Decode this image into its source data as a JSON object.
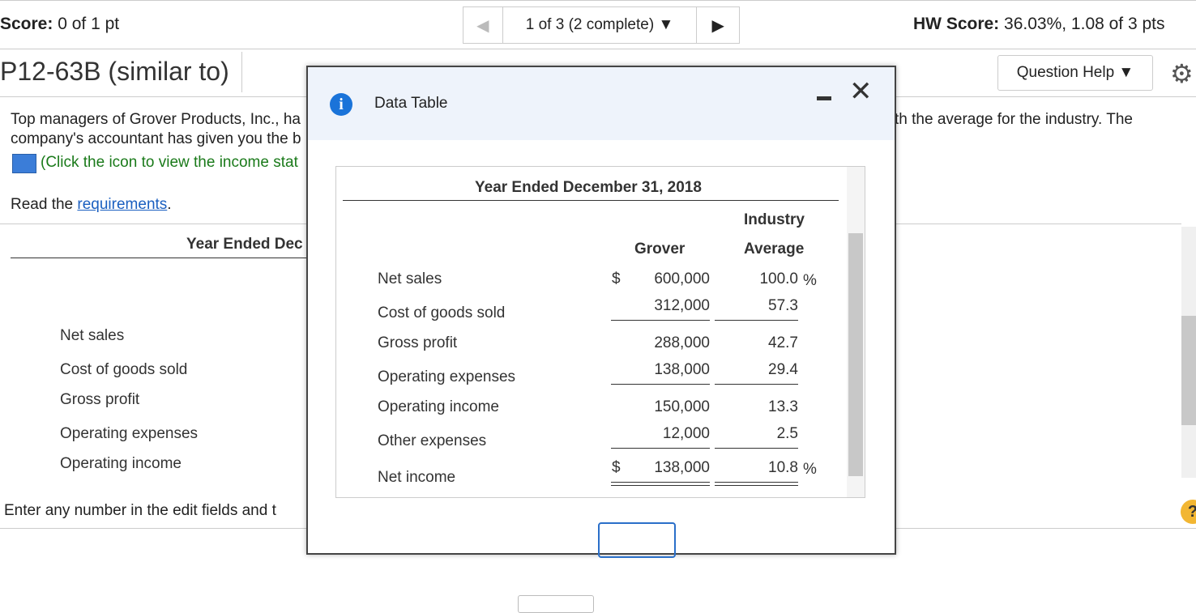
{
  "header": {
    "score_label": "Score:",
    "score_value": "0 of 1 pt",
    "nav": "1 of 3 (2 complete)",
    "hw_label": "HW Score:",
    "hw_value": "36.03%, 1.08 of 3 pts"
  },
  "problem": {
    "title": "P12-63B (similar to)",
    "question_help": "Question Help",
    "text_line1": "Top managers of Grover Products, Inc., ha",
    "text_line1_right": "th the average for the industry. The",
    "text_line2": "company's accountant has given you the b",
    "text_line3": "(Click the icon to view the income stat",
    "read_prefix": "Read the ",
    "read_link": "requirements",
    "read_suffix": ".",
    "table_heading": "Year Ended Dec",
    "rows": [
      "Net sales",
      "Cost of goods sold",
      "Gross profit",
      "Operating expenses",
      "Operating income"
    ],
    "footer": "Enter any number in the edit fields and t"
  },
  "dialog": {
    "title": "Data Table",
    "heading": "Year Ended December 31, 2018",
    "col_grover": "Grover",
    "col_industry_1": "Industry",
    "col_industry_2": "Average",
    "rows": [
      {
        "label": "Net sales",
        "currency": "$",
        "grover": "600,000",
        "industry": "100.0",
        "unit": "%"
      },
      {
        "label": "Cost of goods sold",
        "grover": "312,000",
        "industry": "57.3"
      },
      {
        "label": "Gross profit",
        "grover": "288,000",
        "industry": "42.7"
      },
      {
        "label": "Operating expenses",
        "grover": "138,000",
        "industry": "29.4"
      },
      {
        "label": "Operating income",
        "grover": "150,000",
        "industry": "13.3"
      },
      {
        "label": "Other expenses",
        "grover": "12,000",
        "industry": "2.5"
      },
      {
        "label": "Net income",
        "currency": "$",
        "grover": "138,000",
        "industry": "10.8",
        "unit": "%"
      }
    ]
  }
}
